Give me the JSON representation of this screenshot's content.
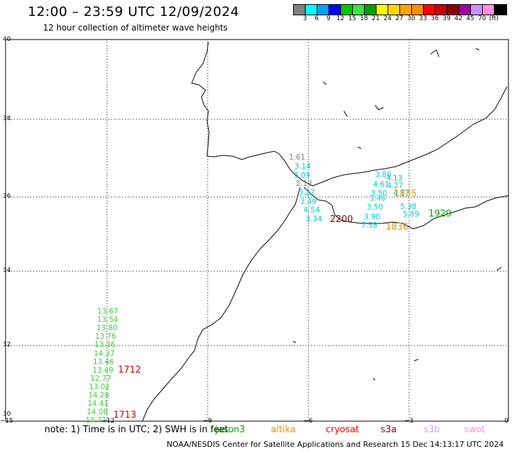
{
  "title": "12:00 – 23:59 UTC 12/09/2024",
  "subtitle": "12 hour collection of altimeter wave heights",
  "legend": {
    "colors": [
      "#808080",
      "#00ffff",
      "#00a0ff",
      "#0000ff",
      "#00c800",
      "#40e040",
      "#00a000",
      "#ffff00",
      "#ffd700",
      "#ffa500",
      "#ff8c00",
      "#ff0000",
      "#c80000",
      "#8b0000",
      "#a000a0",
      "#d090ff",
      "#ff90e0",
      "#000000"
    ],
    "labels": [
      "3",
      "6",
      "9",
      "12",
      "15",
      "18",
      "21",
      "24",
      "27",
      "30",
      "33",
      "36",
      "39",
      "42",
      "45",
      "70",
      "(ft)"
    ]
  },
  "axes": {
    "lon_labels": [
      "−15",
      "−12",
      "−9",
      "−6",
      "−3",
      "0"
    ],
    "lat_labels": [
      "40",
      "38",
      "36",
      "34",
      "32",
      "30"
    ]
  },
  "note": "note: 1) Time is in UTC; 2) SWH is in feet",
  "satellites": [
    {
      "name": "jason3",
      "color": "#00a000"
    },
    {
      "name": "altika",
      "color": "#ff8c00"
    },
    {
      "name": "cryosat",
      "color": "#ff0000"
    },
    {
      "name": "s3a",
      "color": "#8b0000"
    },
    {
      "name": "s3b",
      "color": "#c8a0ff"
    },
    {
      "name": "swot",
      "color": "#ff90e0"
    }
  ],
  "credit": "NOAA/NESDIS Center for Satellite Applications and Research    15 Dec 14:13:17 UTC 2024",
  "tracks": {
    "green_track": {
      "color": "#40d040",
      "values": [
        "13.67",
        "13.54",
        "13.80",
        "13.76",
        "13.36",
        "14.37",
        "13.46",
        "13.49",
        "12.77",
        "13.02",
        "14.28",
        "14.41",
        "14.08",
        "14.72"
      ]
    },
    "gray_track": {
      "color": "#808080",
      "values": [
        "1.61",
        "2.13"
      ]
    },
    "cyan_track_west": {
      "color": "#00d0d0",
      "values": [
        "3.14",
        "3.09",
        "3.27",
        "3.49",
        "4.54",
        "3.34"
      ]
    },
    "cyan_track_east": {
      "color": "#00d0d0",
      "values": [
        "3.86",
        "4.13",
        "4.61",
        "4.27",
        "3.50",
        "3.46",
        "4.17",
        "3.50",
        "5.38",
        "3.90",
        "5.89",
        "7.58"
      ]
    },
    "time_labels": [
      {
        "text": "1712",
        "color": "#e00000"
      },
      {
        "text": "1713",
        "color": "#e00000"
      },
      {
        "text": "2200",
        "color": "#8b0000"
      },
      {
        "text": "1835",
        "color": "#ff8c00"
      },
      {
        "text": "1836",
        "color": "#ff8c00"
      },
      {
        "text": "1929",
        "color": "#00a000"
      }
    ]
  }
}
